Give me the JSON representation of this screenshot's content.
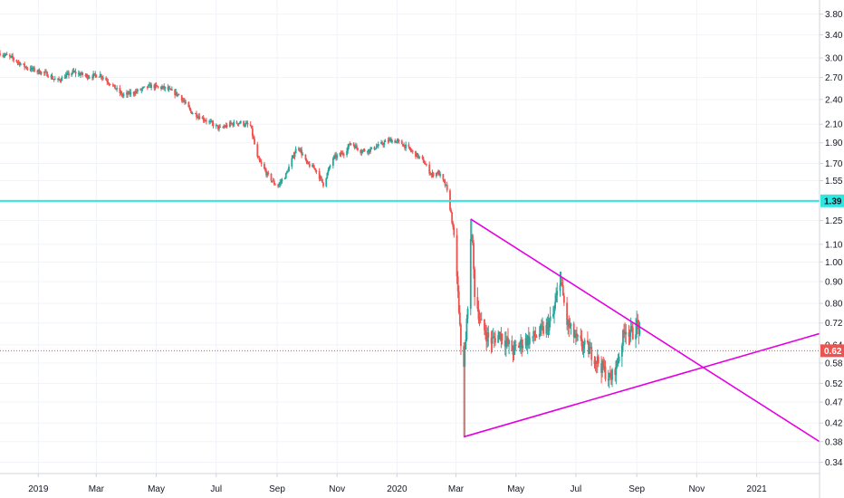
{
  "chart_data": {
    "type": "candlestick",
    "y_scale": "log",
    "ylim": [
      0.32,
      4.1
    ],
    "grid": true,
    "y_ticks": [
      0.34,
      0.38,
      0.42,
      0.47,
      0.52,
      0.58,
      0.64,
      0.72,
      0.8,
      0.9,
      1.0,
      1.1,
      1.25,
      1.39,
      1.55,
      1.7,
      1.9,
      2.1,
      2.4,
      2.7,
      3.0,
      3.4,
      3.8
    ],
    "y_tick_labels": [
      "0.34",
      "0.38",
      "0.42",
      "0.47",
      "0.52",
      "0.58",
      "0.64",
      "0.72",
      "0.80",
      "0.90",
      "1.00",
      "1.10",
      "1.25",
      "1.39",
      "1.55",
      "1.70",
      "1.90",
      "2.10",
      "2.40",
      "2.70",
      "3.00",
      "3.40",
      "3.80"
    ],
    "x_range": [
      "2018-11-23",
      "2021-03-06"
    ],
    "x_ticks": [
      {
        "date": "2019-01-01",
        "label": "2019"
      },
      {
        "date": "2019-03-01",
        "label": "Mar"
      },
      {
        "date": "2019-05-01",
        "label": "May"
      },
      {
        "date": "2019-07-01",
        "label": "Jul"
      },
      {
        "date": "2019-09-01",
        "label": "Sep"
      },
      {
        "date": "2019-11-01",
        "label": "Nov"
      },
      {
        "date": "2020-01-01",
        "label": "2020"
      },
      {
        "date": "2020-03-01",
        "label": "Mar"
      },
      {
        "date": "2020-05-01",
        "label": "May"
      },
      {
        "date": "2020-07-01",
        "label": "Jul"
      },
      {
        "date": "2020-09-01",
        "label": "Sep"
      },
      {
        "date": "2020-11-01",
        "label": "Nov"
      },
      {
        "date": "2021-01-01",
        "label": "2021"
      }
    ],
    "up_color": "#26a69a",
    "down_color": "#ef5350",
    "price_path": [
      [
        "2018-11-23",
        3.08
      ],
      [
        "2018-12-05",
        3.0
      ],
      [
        "2018-12-20",
        2.85
      ],
      [
        "2019-01-10",
        2.75
      ],
      [
        "2019-01-20",
        2.65
      ],
      [
        "2019-02-05",
        2.78
      ],
      [
        "2019-02-20",
        2.72
      ],
      [
        "2019-03-05",
        2.74
      ],
      [
        "2019-03-15",
        2.62
      ],
      [
        "2019-03-28",
        2.45
      ],
      [
        "2019-04-10",
        2.5
      ],
      [
        "2019-04-25",
        2.58
      ],
      [
        "2019-05-10",
        2.55
      ],
      [
        "2019-05-25",
        2.45
      ],
      [
        "2019-06-05",
        2.25
      ],
      [
        "2019-06-20",
        2.15
      ],
      [
        "2019-07-05",
        2.05
      ],
      [
        "2019-07-15",
        2.1
      ],
      [
        "2019-07-25",
        2.12
      ],
      [
        "2019-08-05",
        2.08
      ],
      [
        "2019-08-12",
        1.75
      ],
      [
        "2019-08-22",
        1.6
      ],
      [
        "2019-09-01",
        1.5
      ],
      [
        "2019-09-10",
        1.6
      ],
      [
        "2019-09-22",
        1.88
      ],
      [
        "2019-10-01",
        1.7
      ],
      [
        "2019-10-10",
        1.65
      ],
      [
        "2019-10-18",
        1.52
      ],
      [
        "2019-10-28",
        1.75
      ],
      [
        "2019-11-08",
        1.8
      ],
      [
        "2019-11-15",
        1.9
      ],
      [
        "2019-11-25",
        1.82
      ],
      [
        "2019-12-05",
        1.83
      ],
      [
        "2019-12-15",
        1.88
      ],
      [
        "2019-12-25",
        1.93
      ],
      [
        "2020-01-05",
        1.9
      ],
      [
        "2020-01-18",
        1.8
      ],
      [
        "2020-01-28",
        1.72
      ],
      [
        "2020-02-05",
        1.6
      ],
      [
        "2020-02-12",
        1.62
      ],
      [
        "2020-02-20",
        1.5
      ],
      [
        "2020-02-25",
        1.3
      ],
      [
        "2020-03-01",
        1.05
      ],
      [
        "2020-03-04",
        0.75
      ],
      [
        "2020-03-08",
        0.55
      ],
      [
        "2020-03-11",
        0.65
      ],
      [
        "2020-03-14",
        0.9
      ],
      [
        "2020-03-17",
        1.2
      ],
      [
        "2020-03-20",
        0.85
      ],
      [
        "2020-03-26",
        0.72
      ],
      [
        "2020-04-05",
        0.65
      ],
      [
        "2020-04-15",
        0.68
      ],
      [
        "2020-04-28",
        0.62
      ],
      [
        "2020-05-08",
        0.65
      ],
      [
        "2020-05-20",
        0.67
      ],
      [
        "2020-06-01",
        0.7
      ],
      [
        "2020-06-08",
        0.75
      ],
      [
        "2020-06-15",
        0.92
      ],
      [
        "2020-06-22",
        0.72
      ],
      [
        "2020-07-01",
        0.66
      ],
      [
        "2020-07-15",
        0.62
      ],
      [
        "2020-07-25",
        0.58
      ],
      [
        "2020-08-05",
        0.53
      ],
      [
        "2020-08-12",
        0.58
      ],
      [
        "2020-08-20",
        0.7
      ],
      [
        "2020-08-28",
        0.68
      ],
      [
        "2020-09-02",
        0.72
      ],
      [
        "2020-09-06",
        0.62
      ]
    ],
    "extremes": [
      [
        "2020-03-09",
        0.39,
        "low"
      ],
      [
        "2020-03-16",
        1.26,
        "high"
      ],
      [
        "2020-06-15",
        0.95,
        "high"
      ],
      [
        "2020-08-08",
        0.51,
        "low"
      ],
      [
        "2020-09-01",
        0.74,
        "high"
      ]
    ],
    "horizontal_line": {
      "value": 1.39,
      "label": "1.39",
      "color": "#2de8e0"
    },
    "current_price": {
      "value": 0.62,
      "label": "0.62",
      "color": "#ef5350"
    },
    "trendlines": [
      {
        "color": "#e400e0",
        "points": [
          [
            "2020-03-16",
            1.26
          ],
          [
            "2021-03-06",
            0.38
          ]
        ]
      },
      {
        "color": "#e400e0",
        "points": [
          [
            "2020-03-09",
            0.39
          ],
          [
            "2021-03-06",
            0.68
          ]
        ]
      }
    ]
  }
}
